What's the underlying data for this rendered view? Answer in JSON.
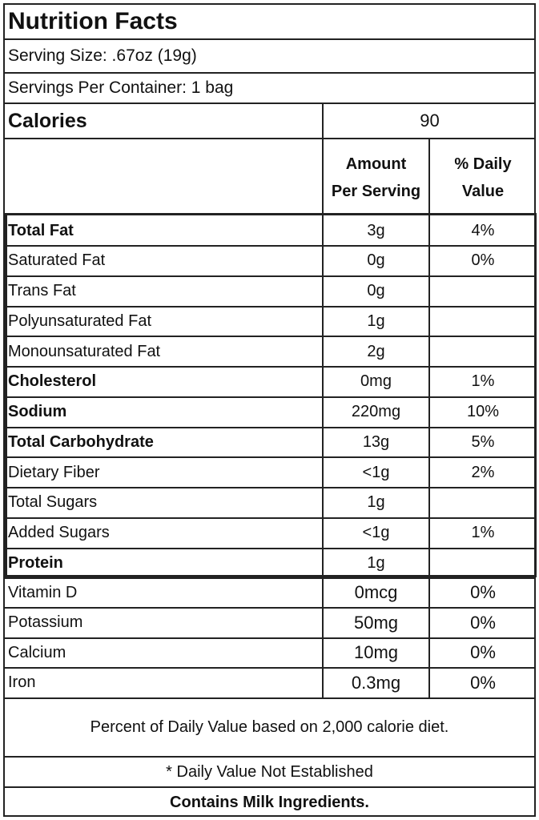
{
  "title": "Nutrition Facts",
  "serving_size": "Serving Size: .67oz (19g)",
  "servings_per_container": "Servings Per Container: 1 bag",
  "calories": {
    "label": "Calories",
    "value": "90"
  },
  "headers": {
    "amount_line1": "Amount",
    "amount_line2": "Per Serving",
    "dv_line1": "% Daily",
    "dv_line2": "Value"
  },
  "nutrients": [
    {
      "name": "Total Fat",
      "amount": "3g",
      "dv": "4%"
    },
    {
      "name": "Saturated Fat",
      "amount": "0g",
      "dv": "0%"
    },
    {
      "name": "Trans Fat",
      "amount": "0g",
      "dv": ""
    },
    {
      "name": "Polyunsaturated Fat",
      "amount": "1g",
      "dv": ""
    },
    {
      "name": "Monounsaturated Fat",
      "amount": "2g",
      "dv": ""
    },
    {
      "name": "Cholesterol",
      "amount": "0mg",
      "dv": "1%"
    },
    {
      "name": "Sodium",
      "amount": "220mg",
      "dv": "10%"
    },
    {
      "name": "Total Carbohydrate",
      "amount": "13g",
      "dv": "5%"
    },
    {
      "name": "Dietary Fiber",
      "amount": "<1g",
      "dv": "2%"
    },
    {
      "name": "Total Sugars",
      "amount": "1g",
      "dv": ""
    },
    {
      "name": "Added Sugars",
      "amount": "<1g",
      "dv": "1%"
    },
    {
      "name": "Protein",
      "amount": "1g",
      "dv": ""
    }
  ],
  "vitamins": [
    {
      "name": "Vitamin D",
      "amount": "0mcg",
      "dv": "0%"
    },
    {
      "name": "Potassium",
      "amount": "50mg",
      "dv": "0%"
    },
    {
      "name": "Calcium",
      "amount": "10mg",
      "dv": "0%"
    },
    {
      "name": "Iron",
      "amount": "0.3mg",
      "dv": "0%"
    }
  ],
  "footnote": "Percent of Daily Value based on 2,000 calorie diet.",
  "not_established": "* Daily Value Not Established",
  "allergen": "Contains Milk Ingredients."
}
